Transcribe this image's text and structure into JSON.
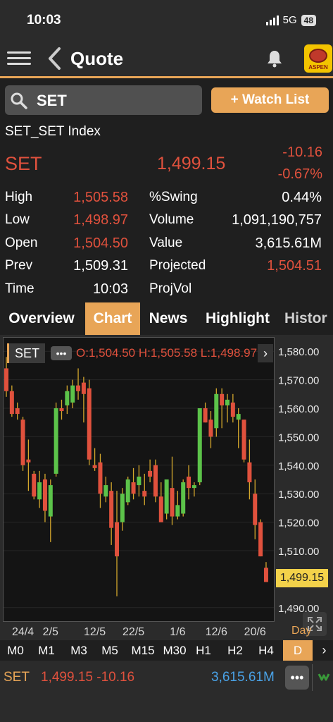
{
  "status_bar": {
    "time": "10:03",
    "network": "5G",
    "battery": "48"
  },
  "header": {
    "title": "Quote",
    "logo_text": "ASPEN"
  },
  "search": {
    "value": "SET"
  },
  "watch_button": {
    "label": "+ Watch List"
  },
  "quote": {
    "index_name": "SET_SET Index",
    "symbol": "SET",
    "price": "1,499.15",
    "change": "-10.16",
    "change_pct": "-0.67%",
    "stats": [
      {
        "label": "High",
        "value": "1,505.58",
        "label2": "%Swing",
        "value2": "0.44%"
      },
      {
        "label": "Low",
        "value": "1,498.97",
        "label2": "Volume",
        "value2": "1,091,190,757"
      },
      {
        "label": "Open",
        "value": "1,504.50",
        "label2": "Value",
        "value2": "3,615.61M"
      },
      {
        "label": "Prev",
        "value": "1,509.31",
        "label2": "Projected",
        "value2": "1,504.51"
      },
      {
        "label": "Time",
        "value": "10:03",
        "label2": "ProjVol",
        "value2": ""
      }
    ]
  },
  "tabs": [
    "Overview",
    "Chart",
    "News",
    "Highlight",
    "Histor"
  ],
  "active_tab": "Chart",
  "chart": {
    "symbol_chip": "SET",
    "ohlc_text": "O:1,504.50  H:1,505.58  L:1,498.97",
    "last_price_tag": "1,499.15",
    "period_label": "Day"
  },
  "chart_data": {
    "type": "candlestick",
    "yticks": [
      "1,580.00",
      "1,570.00",
      "1,560.00",
      "1,550.00",
      "1,540.00",
      "1,530.00",
      "1,520.00",
      "1,510.00",
      "1,490.00"
    ],
    "xticks": [
      "24/4",
      "2/5",
      "12/5",
      "22/5",
      "1/6",
      "12/6",
      "20/6"
    ],
    "ylim": [
      1485,
      1585
    ],
    "up_color": "#5cc34a",
    "down_color": "#e0513d",
    "candles": [
      [
        1574,
        1578,
        1564,
        1566
      ],
      [
        1566,
        1568,
        1557,
        1558
      ],
      [
        1560,
        1562,
        1556,
        1558
      ],
      [
        1556,
        1557,
        1538,
        1540
      ],
      [
        1542,
        1549,
        1531,
        1541
      ],
      [
        1537,
        1538,
        1528,
        1529
      ],
      [
        1528,
        1538,
        1525,
        1534
      ],
      [
        1535,
        1537,
        1520,
        1524
      ],
      [
        1522,
        1535,
        1513,
        1533
      ],
      [
        1537,
        1562,
        1536,
        1560
      ],
      [
        1560,
        1563,
        1556,
        1559
      ],
      [
        1561,
        1568,
        1558,
        1566
      ],
      [
        1562,
        1570,
        1560,
        1568
      ],
      [
        1568,
        1574,
        1563,
        1566
      ],
      [
        1569,
        1571,
        1555,
        1565
      ],
      [
        1567,
        1570,
        1540,
        1542
      ],
      [
        1540,
        1546,
        1538,
        1539
      ],
      [
        1541,
        1544,
        1525,
        1530
      ],
      [
        1529,
        1536,
        1527,
        1533
      ],
      [
        1531,
        1534,
        1512,
        1518
      ],
      [
        1520,
        1531,
        1494,
        1508
      ],
      [
        1520,
        1532,
        1517,
        1530
      ],
      [
        1527,
        1536,
        1526,
        1535
      ],
      [
        1534,
        1539,
        1528,
        1530
      ],
      [
        1533,
        1540,
        1529,
        1536
      ],
      [
        1531,
        1537,
        1526,
        1529
      ],
      [
        1538,
        1542,
        1534,
        1536
      ],
      [
        1540,
        1542,
        1527,
        1529
      ],
      [
        1529,
        1534,
        1520,
        1520
      ],
      [
        1523,
        1535,
        1521,
        1535
      ],
      [
        1532,
        1543,
        1519,
        1522
      ],
      [
        1522,
        1531,
        1521,
        1526
      ],
      [
        1523,
        1535,
        1522,
        1534
      ],
      [
        1536,
        1540,
        1528,
        1532
      ],
      [
        1532,
        1534,
        1529,
        1533
      ],
      [
        1534,
        1560,
        1533,
        1560
      ],
      [
        1560,
        1562,
        1555,
        1555
      ],
      [
        1556,
        1559,
        1546,
        1550
      ],
      [
        1553,
        1567,
        1550,
        1565
      ],
      [
        1565,
        1567,
        1553,
        1561
      ],
      [
        1561,
        1565,
        1555,
        1563
      ],
      [
        1562,
        1565,
        1555,
        1557
      ],
      [
        1556,
        1560,
        1546,
        1558
      ],
      [
        1556,
        1556,
        1541,
        1542
      ],
      [
        1541,
        1549,
        1528,
        1534
      ],
      [
        1530,
        1535,
        1514,
        1519
      ],
      [
        1520,
        1521,
        1508,
        1508
      ],
      [
        1504,
        1506,
        1499,
        1499
      ]
    ]
  },
  "timeframes": [
    "M0",
    "M1",
    "M3",
    "M5",
    "M15",
    "M30",
    "H1",
    "H2",
    "H4",
    "D"
  ],
  "active_timeframe": "D",
  "bottom": {
    "symbol": "SET",
    "price_change": "1,499.15 -10.16",
    "value": "3,615.61M"
  }
}
